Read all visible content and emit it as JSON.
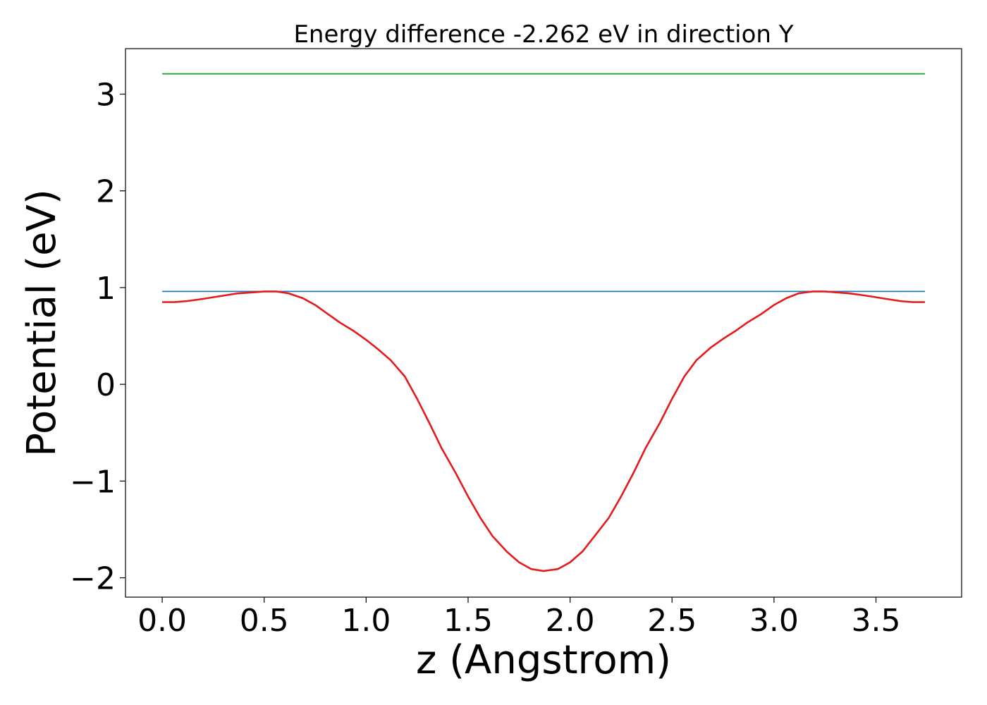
{
  "chart_data": {
    "type": "line",
    "title": "Energy difference -2.262 eV in direction Y",
    "xlabel": "z (Angstrom)",
    "ylabel": "Potential (eV)",
    "xlim": [
      -0.18,
      3.92
    ],
    "ylim": [
      -2.2,
      3.47
    ],
    "xticks": [
      {
        "value": 0.0,
        "label": "0.0"
      },
      {
        "value": 0.5,
        "label": "0.5"
      },
      {
        "value": 1.0,
        "label": "1.0"
      },
      {
        "value": 1.5,
        "label": "1.5"
      },
      {
        "value": 2.0,
        "label": "2.0"
      },
      {
        "value": 2.5,
        "label": "2.5"
      },
      {
        "value": 3.0,
        "label": "3.0"
      },
      {
        "value": 3.5,
        "label": "3.5"
      }
    ],
    "yticks": [
      {
        "value": -2,
        "label": "−2"
      },
      {
        "value": -1,
        "label": "−1"
      },
      {
        "value": 0,
        "label": "0"
      },
      {
        "value": 1,
        "label": "1"
      },
      {
        "value": 2,
        "label": "2"
      },
      {
        "value": 3,
        "label": "3"
      }
    ],
    "grid": false,
    "series": [
      {
        "color": "#2ca02c",
        "x": [
          0.0,
          3.74
        ],
        "y": [
          3.21,
          3.21
        ]
      },
      {
        "color": "#1f77b4",
        "x": [
          0.0,
          3.74
        ],
        "y": [
          0.96,
          0.96
        ]
      },
      {
        "color": "#e41a1c",
        "x": [
          0.0,
          0.06,
          0.12,
          0.19,
          0.25,
          0.31,
          0.37,
          0.44,
          0.5,
          0.56,
          0.62,
          0.69,
          0.75,
          0.81,
          0.87,
          0.94,
          1.0,
          1.06,
          1.12,
          1.19,
          1.25,
          1.31,
          1.37,
          1.44,
          1.5,
          1.56,
          1.62,
          1.69,
          1.75,
          1.81,
          1.87,
          1.94,
          2.0,
          2.06,
          2.12,
          2.19,
          2.25,
          2.31,
          2.37,
          2.44,
          2.5,
          2.56,
          2.62,
          2.69,
          2.75,
          2.81,
          2.87,
          2.94,
          3.0,
          3.06,
          3.12,
          3.19,
          3.25,
          3.31,
          3.37,
          3.44,
          3.5,
          3.56,
          3.62,
          3.68,
          3.74
        ],
        "y": [
          0.85,
          0.85,
          0.86,
          0.88,
          0.9,
          0.92,
          0.94,
          0.95,
          0.96,
          0.96,
          0.94,
          0.89,
          0.82,
          0.73,
          0.64,
          0.55,
          0.46,
          0.36,
          0.25,
          0.08,
          -0.15,
          -0.4,
          -0.66,
          -0.92,
          -1.16,
          -1.38,
          -1.57,
          -1.73,
          -1.84,
          -1.91,
          -1.93,
          -1.91,
          -1.84,
          -1.73,
          -1.57,
          -1.38,
          -1.16,
          -0.92,
          -0.66,
          -0.4,
          -0.15,
          0.08,
          0.25,
          0.38,
          0.47,
          0.55,
          0.64,
          0.73,
          0.82,
          0.89,
          0.94,
          0.96,
          0.96,
          0.95,
          0.94,
          0.92,
          0.9,
          0.88,
          0.86,
          0.85,
          0.85
        ]
      }
    ]
  }
}
